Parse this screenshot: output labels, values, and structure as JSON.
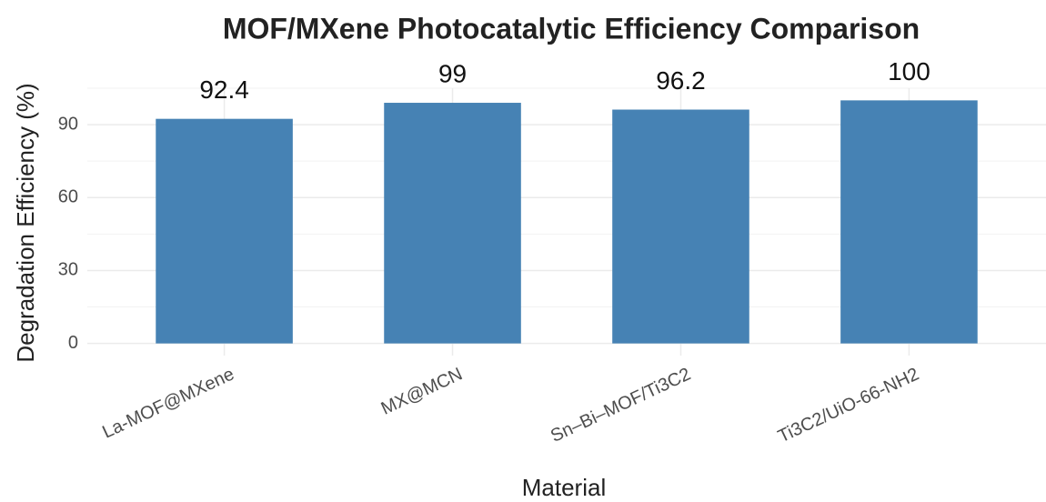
{
  "chart_data": {
    "type": "bar",
    "title": "MOF/MXene Photocatalytic Efficiency Comparison",
    "x_label": "Material",
    "y_label": "Degradation Efficiency (%)",
    "categories": [
      "La-MOF@MXene",
      "MX@MCN",
      "Sn–Bi–MOF/Ti3C2",
      "Ti3C2/UiO-66-NH2"
    ],
    "values": [
      92.4,
      99,
      96.2,
      100
    ],
    "color": "#4682b4",
    "ylim": [
      -5,
      105
    ],
    "yticks": [
      0,
      30,
      60,
      90
    ],
    "grid": true
  }
}
